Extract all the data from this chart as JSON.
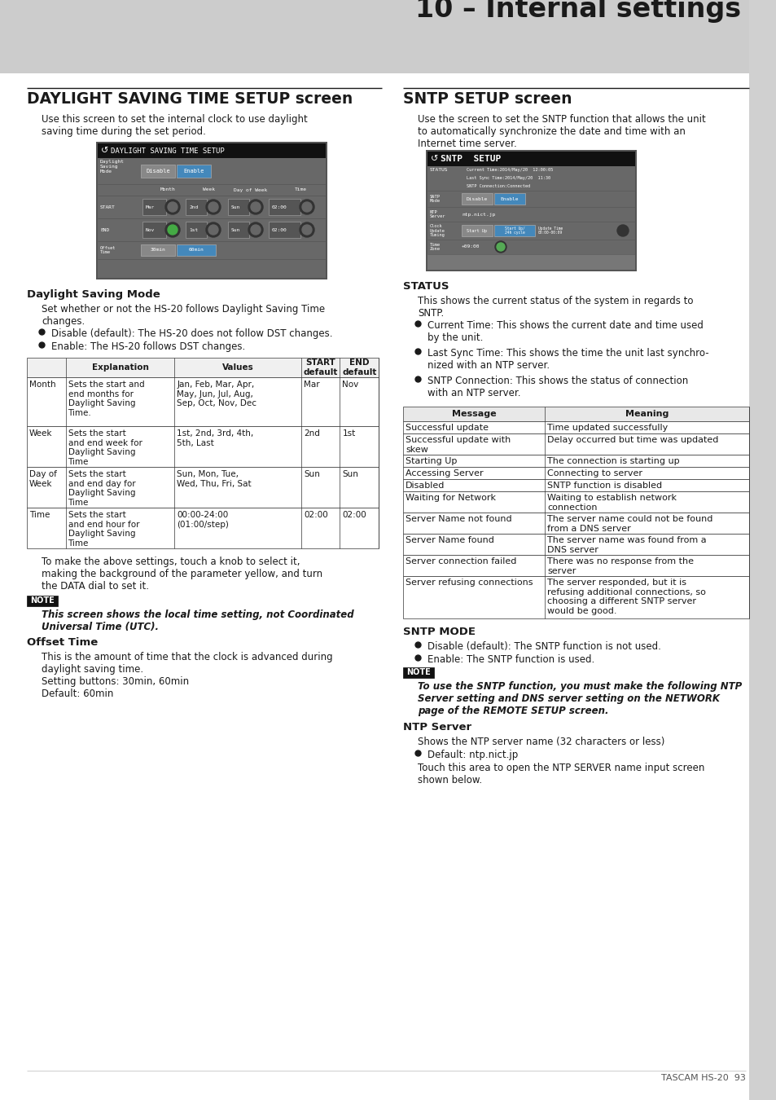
{
  "page_title": "10 – Internal settings",
  "left_section_title": "DAYLIGHT SAVING TIME SETUP screen",
  "left_intro": "Use this screen to set the internal clock to use daylight\nsaving time during the set period.",
  "right_section_title": "SNTP SETUP screen",
  "right_intro": "Use the screen to set the SNTP function that allows the unit\nto automatically synchronize the date and time with an\nInternet time server.",
  "dst_mode_title": "Daylight Saving Mode",
  "dst_mode_text1": "Set whether or not the HS-20 follows Daylight Saving Time\nchanges.",
  "dst_bullet1": "Disable (default): The HS-20 does not follow DST changes.",
  "dst_bullet2": "Enable: The HS-20 follows DST changes.",
  "table_headers": [
    "",
    "Explanation",
    "Values",
    "START\ndefault",
    "END\ndefault"
  ],
  "table_rows": [
    [
      "Month",
      "Sets the start and\nend months for\nDaylight Saving\nTime.",
      "Jan, Feb, Mar, Apr,\nMay, Jun, Jul, Aug,\nSep, Oct, Nov, Dec",
      "Mar",
      "Nov"
    ],
    [
      "Week",
      "Sets the start\nand end week for\nDaylight Saving\nTime",
      "1st, 2nd, 3rd, 4th,\n5th, Last",
      "2nd",
      "1st"
    ],
    [
      "Day of\nWeek",
      "Sets the start\nand end day for\nDaylight Saving\nTime",
      "Sun, Mon, Tue,\nWed, Thu, Fri, Sat",
      "Sun",
      "Sun"
    ],
    [
      "Time",
      "Sets the start\nand end hour for\nDaylight Saving\nTime",
      "00:00-24:00\n(01:00/step)",
      "02:00",
      "02:00"
    ]
  ],
  "para_touch": "To make the above settings, touch a knob to select it,\nmaking the background of the parameter yellow, and turn\nthe DATA dial to set it.",
  "note_text": "This screen shows the local time setting, not Coordinated\nUniversal Time (UTC).",
  "offset_title": "Offset Time",
  "offset_text": "This is the amount of time that the clock is advanced during\ndaylight saving time.",
  "offset_setting": "Setting buttons: 30min, 60min",
  "offset_default": "Default: 60min",
  "status_title": "STATUS",
  "status_text": "This shows the current status of the system in regards to\nSNTP.",
  "status_bullet1": "Current Time: This shows the current date and time used\nby the unit.",
  "status_bullet2": "Last Sync Time: This shows the time the unit last synchro-\nnized with an NTP server.",
  "status_bullet3": "SNTP Connection: This shows the status of connection\nwith an NTP server.",
  "status_table_headers": [
    "Message",
    "Meaning"
  ],
  "status_table_rows": [
    [
      "Successful update",
      "Time updated successfully"
    ],
    [
      "Successful update with\nskew",
      "Delay occurred but time was updated"
    ],
    [
      "Starting Up",
      "The connection is starting up"
    ],
    [
      "Accessing Server",
      "Connecting to server"
    ],
    [
      "Disabled",
      "SNTP function is disabled"
    ],
    [
      "Waiting for Network",
      "Waiting to establish network\nconnection"
    ],
    [
      "Server Name not found",
      "The server name could not be found\nfrom a DNS server"
    ],
    [
      "Server Name found",
      "The server name was found from a\nDNS server"
    ],
    [
      "Server connection failed",
      "There was no response from the\nserver"
    ],
    [
      "Server refusing connections",
      "The server responded, but it is\nrefusing additional connections, so\nchoosing a different SNTP server\nwould be good."
    ]
  ],
  "sntp_mode_title": "SNTP MODE",
  "sntp_mode_bullet1": "Disable (default): The SNTP function is not used.",
  "sntp_mode_bullet2": "Enable: The SNTP function is used.",
  "sntp_note": "To use the SNTP function, you must make the following NTP\nServer setting and DNS server setting on the NETWORK\npage of the REMOTE SETUP screen.",
  "ntp_server_title": "NTP Server",
  "ntp_server_text": "Shows the NTP server name (32 characters or less)",
  "ntp_server_bullet": "Default: ntp.nict.jp",
  "ntp_server_touch": "Touch this area to open the NTP SERVER name input screen\nshown below.",
  "footer_text": "TASCAM HS-20",
  "footer_page": "93"
}
